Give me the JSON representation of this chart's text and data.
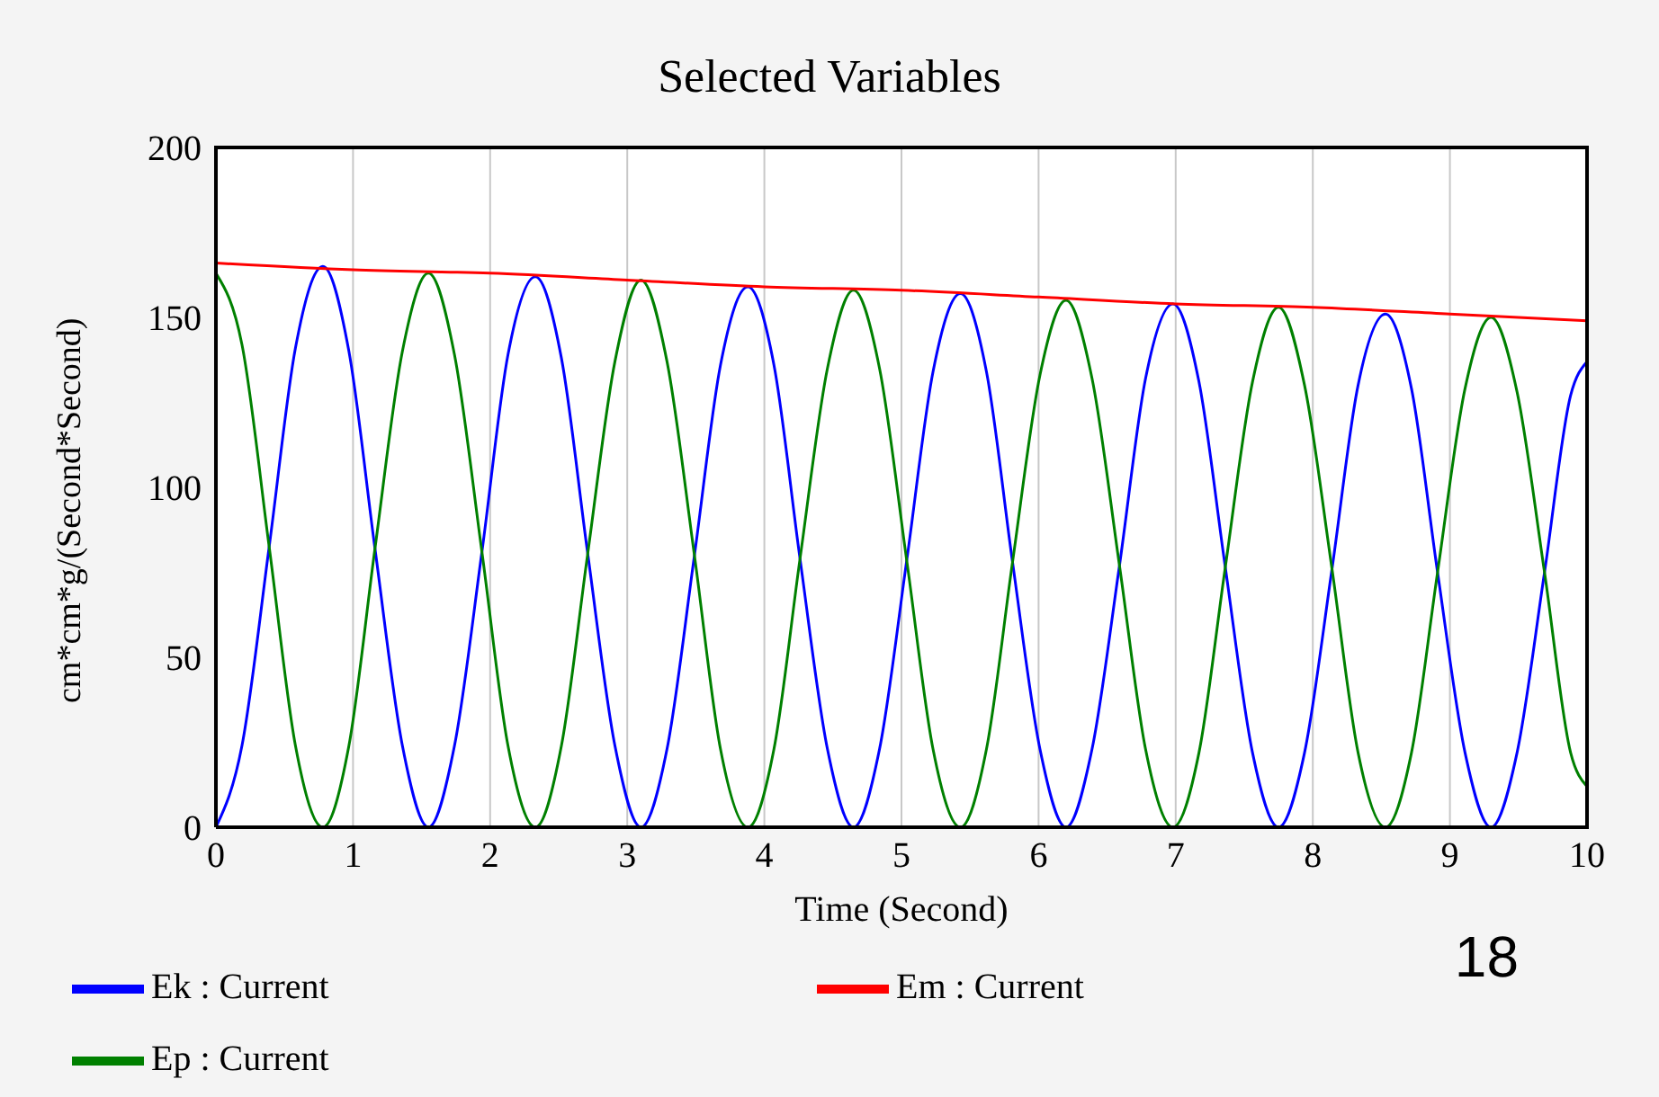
{
  "chart_data": {
    "type": "line",
    "title": "Selected Variables",
    "xlabel": "Time (Second)",
    "ylabel": "cm*cm*g/(Second*Second)",
    "x": [
      0,
      0.19,
      0.39,
      0.58,
      0.78,
      0.97,
      1.16,
      1.36,
      1.55,
      1.74,
      1.94,
      2.13,
      2.33,
      2.52,
      2.71,
      2.91,
      3.1,
      3.29,
      3.49,
      3.68,
      3.88,
      4.07,
      4.26,
      4.46,
      4.65,
      4.84,
      5.04,
      5.23,
      5.43,
      5.62,
      5.81,
      6.01,
      6.2,
      6.39,
      6.59,
      6.78,
      6.98,
      7.17,
      7.36,
      7.56,
      7.75,
      7.94,
      8.14,
      8.33,
      8.53,
      8.72,
      8.91,
      9.11,
      9.3,
      9.49,
      9.69,
      9.88,
      10
    ],
    "series": [
      {
        "name": "Ek : Current",
        "color": "#0000ff",
        "values": [
          0,
          24,
          83,
          141,
          165,
          140,
          82,
          24,
          0,
          24,
          81,
          139,
          162,
          138,
          81,
          24,
          0,
          23,
          80,
          136,
          159,
          136,
          79,
          23,
          0,
          23,
          79,
          134,
          157,
          134,
          78,
          23,
          0,
          23,
          77,
          132,
          154,
          131,
          77,
          22,
          0,
          22,
          76,
          130,
          151,
          129,
          75,
          22,
          0,
          22,
          75,
          127,
          137
        ]
      },
      {
        "name": "Ep : Current",
        "color": "#008000",
        "values": [
          163,
          142,
          82,
          24,
          0,
          24,
          82,
          140,
          163,
          139,
          81,
          24,
          0,
          24,
          80,
          137,
          161,
          137,
          80,
          23,
          0,
          23,
          79,
          135,
          158,
          135,
          78,
          23,
          0,
          23,
          78,
          133,
          155,
          132,
          77,
          23,
          0,
          22,
          76,
          131,
          153,
          130,
          76,
          22,
          0,
          22,
          75,
          129,
          150,
          128,
          75,
          22,
          12
        ]
      },
      {
        "name": "Em : Current",
        "color": "#ff0000",
        "x": [
          0,
          1,
          2,
          3,
          4,
          5,
          6,
          7,
          8,
          9,
          10
        ],
        "values": [
          166,
          164,
          163,
          161,
          159,
          158,
          156,
          154,
          153,
          151,
          149
        ]
      }
    ],
    "xlim": [
      0,
      10
    ],
    "xticks": [
      0,
      1,
      2,
      3,
      4,
      5,
      6,
      7,
      8,
      9,
      10
    ],
    "ylim": [
      0,
      200
    ],
    "yticks": [
      0,
      50,
      100,
      150,
      200
    ],
    "grid": "x",
    "legend": "bottom",
    "marker": "none",
    "line_style": "solid",
    "annotations": [
      "18"
    ]
  }
}
